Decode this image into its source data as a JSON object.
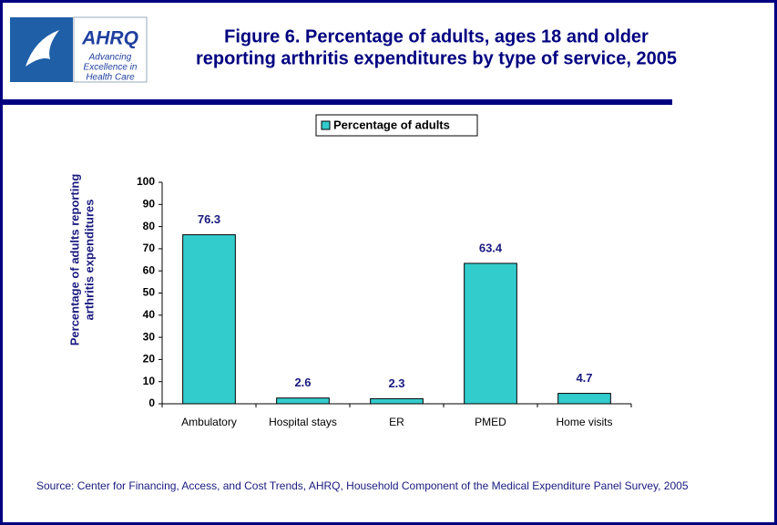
{
  "logo": {
    "name": "AHRQ",
    "tagline": [
      "Advancing",
      "Excellence in",
      "Health Care"
    ]
  },
  "chart_data": {
    "type": "bar",
    "title": [
      "Figure 6. Percentage of adults, ages 18 and older",
      "reporting arthritis expenditures by type of service, 2005"
    ],
    "y_label": [
      "Percentage of adults reporting",
      "arthritis expenditures"
    ],
    "categories": [
      "Ambulatory",
      "Hospital stays",
      "ER",
      "PMED",
      "Home visits"
    ],
    "series": [
      {
        "name": "Percentage of adults",
        "color": "#33cccc",
        "values": [
          76.3,
          2.6,
          2.3,
          63.4,
          4.7
        ]
      }
    ],
    "ylim": [
      0,
      100
    ],
    "yticks": [
      0,
      10,
      20,
      30,
      40,
      50,
      60,
      70,
      80,
      90,
      100
    ],
    "grid": false,
    "legend": "top"
  },
  "source": "Source: Center for Financing, Access, and Cost Trends, AHRQ, Household Component of the Medical Expenditure Panel Survey, 2005"
}
